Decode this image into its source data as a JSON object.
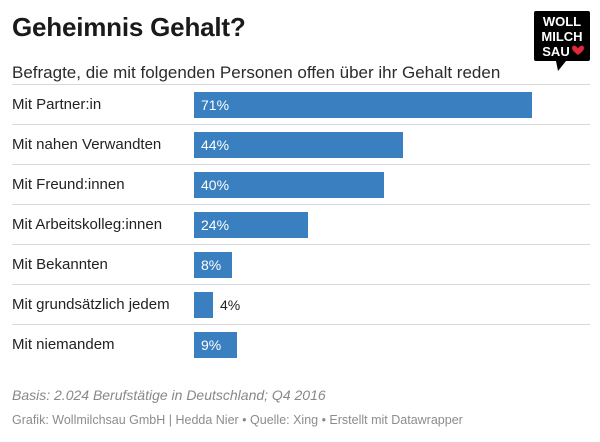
{
  "title": "Geheimnis Gehalt?",
  "subtitle": "Befragte, die mit folgenden Personen offen über ihr Gehalt reden",
  "logo": {
    "lines": [
      "WOLL",
      "MILCH",
      "SAU"
    ],
    "heart_color": "#e0293a",
    "bg_color": "#000000"
  },
  "chart_data": {
    "type": "bar",
    "orientation": "horizontal",
    "categories": [
      "Mit Partner:in",
      "Mit nahen Verwandten",
      "Mit Freund:innen",
      "Mit Arbeitskolleg:innen",
      "Mit Bekannten",
      "Mit grundsätzlich jedem",
      "Mit niemandem"
    ],
    "values": [
      71,
      44,
      40,
      24,
      8,
      4,
      9
    ],
    "value_labels": [
      "71%",
      "44%",
      "40%",
      "24%",
      "8%",
      "4%",
      "9%"
    ],
    "unit": "%",
    "xlim": [
      0,
      71
    ],
    "bar_color": "#3a7fbf",
    "grid": false
  },
  "footer": {
    "source": "Basis: 2.024 Berufstätige in Deutschland; Q4 2016",
    "credit": "Grafik: Wollmilchsau GmbH | Hedda Nier • Quelle: Xing • Erstellt mit Datawrapper"
  }
}
